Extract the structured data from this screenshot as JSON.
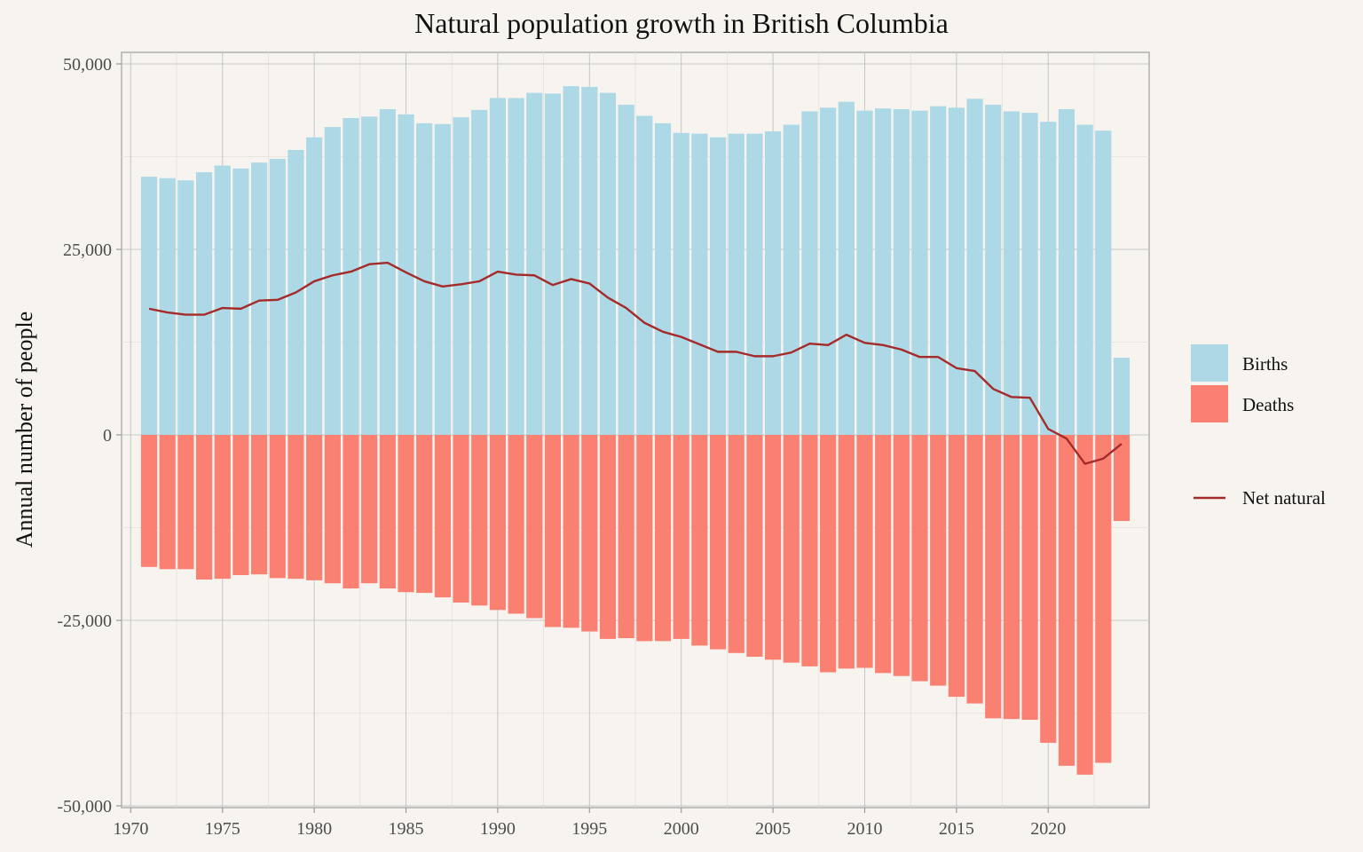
{
  "chart_data": {
    "type": "bar",
    "title": "Natural population growth in British Columbia",
    "xlabel": "",
    "ylabel": "Annual number of people",
    "xlim": [
      1969.5,
      2025.5
    ],
    "ylim": [
      -50000,
      50000
    ],
    "x_ticks": [
      1970,
      1975,
      1980,
      1985,
      1990,
      1995,
      2000,
      2005,
      2010,
      2015,
      2020
    ],
    "y_ticks": [
      50000,
      25000,
      0,
      -25000,
      -50000
    ],
    "y_tick_labels": [
      "50,000",
      "25,000",
      "0",
      "-25,000",
      "-50,000"
    ],
    "grid": true,
    "legend_position": "right",
    "colors": {
      "births": "#add8e6",
      "deaths": "#fa8072",
      "net": "#a52a2a",
      "background": "#f7f4f0",
      "grid": "#c8c8c8"
    },
    "years": [
      1971,
      1972,
      1973,
      1974,
      1975,
      1976,
      1977,
      1978,
      1979,
      1980,
      1981,
      1982,
      1983,
      1984,
      1985,
      1986,
      1987,
      1988,
      1989,
      1990,
      1991,
      1992,
      1993,
      1994,
      1995,
      1996,
      1997,
      1998,
      1999,
      2000,
      2001,
      2002,
      2003,
      2004,
      2005,
      2006,
      2007,
      2008,
      2009,
      2010,
      2011,
      2012,
      2013,
      2014,
      2015,
      2016,
      2017,
      2018,
      2019,
      2020,
      2021,
      2022,
      2023,
      2024
    ],
    "series": [
      {
        "name": "Births",
        "type": "bar",
        "values": [
          34800,
          34600,
          34300,
          35400,
          36300,
          35900,
          36700,
          37200,
          38400,
          40100,
          41500,
          42700,
          42900,
          43900,
          43200,
          42000,
          41900,
          42800,
          43800,
          45400,
          45400,
          46100,
          46000,
          47000,
          46900,
          46100,
          44500,
          43000,
          42000,
          40700,
          40600,
          40100,
          40600,
          40600,
          40900,
          41800,
          43600,
          44100,
          44900,
          43700,
          44000,
          43900,
          43700,
          44300,
          44100,
          45300,
          44500,
          43600,
          43400,
          42200,
          43900,
          41800,
          41000,
          10400
        ]
      },
      {
        "name": "Deaths",
        "type": "bar",
        "values": [
          -17800,
          -18100,
          -18100,
          -19500,
          -19400,
          -18900,
          -18800,
          -19300,
          -19400,
          -19600,
          -20000,
          -20700,
          -20000,
          -20700,
          -21200,
          -21300,
          -21900,
          -22600,
          -23000,
          -23600,
          -24100,
          -24700,
          -25900,
          -26000,
          -26500,
          -27500,
          -27400,
          -27800,
          -27800,
          -27500,
          -28400,
          -28900,
          -29400,
          -29900,
          -30300,
          -30700,
          -31200,
          -32000,
          -31500,
          -31400,
          -32100,
          -32500,
          -33200,
          -33800,
          -35300,
          -36200,
          -38200,
          -38300,
          -38400,
          -41500,
          -44600,
          -45800,
          -44200,
          -11600
        ]
      },
      {
        "name": "Net natural",
        "type": "line",
        "values": [
          17000,
          16500,
          16200,
          16200,
          17100,
          17000,
          18100,
          18200,
          19200,
          20700,
          21500,
          22000,
          23000,
          23200,
          21900,
          20700,
          20000,
          20300,
          20700,
          22000,
          21600,
          21500,
          20200,
          21000,
          20400,
          18500,
          17100,
          15100,
          13900,
          13200,
          12200,
          11200,
          11200,
          10600,
          10600,
          11100,
          12300,
          12100,
          13500,
          12400,
          12100,
          11500,
          10500,
          10500,
          9000,
          8600,
          6200,
          5100,
          5000,
          800,
          -500,
          -3900,
          -3200,
          -1200
        ]
      }
    ]
  }
}
